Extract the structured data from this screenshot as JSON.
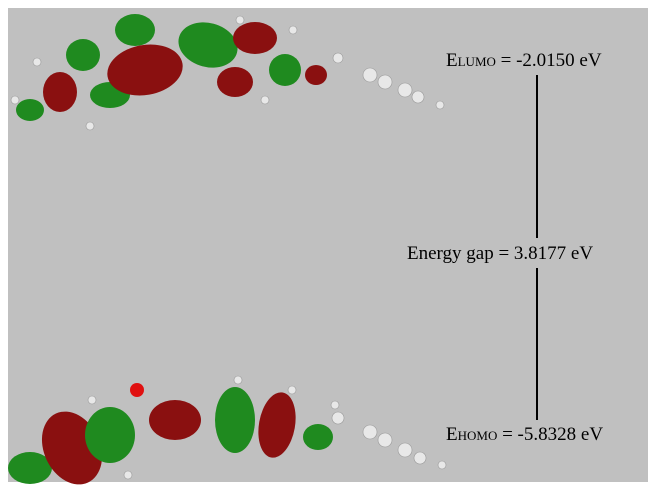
{
  "lumo": {
    "symbol": "E",
    "subscript": "LUMO",
    "value_text": "= -2.0150 eV"
  },
  "gap": {
    "label": "Energy gap = 3.8177 eV"
  },
  "homo": {
    "symbol": "E",
    "subscript": "HOMO",
    "value_text": "= -5.8328 eV"
  }
}
